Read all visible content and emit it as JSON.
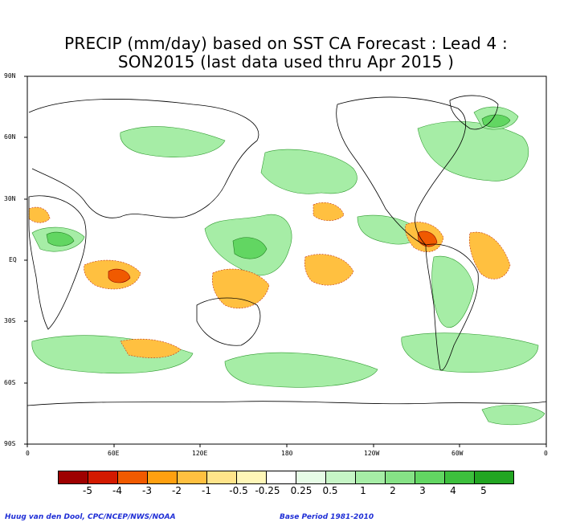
{
  "title": {
    "line1": "PRECIP (mm/day) based on SST CA Forecast : Lead 4 :",
    "line2": "SON2015 (last data used thru Apr 2015 )"
  },
  "axes": {
    "lat_labels": [
      "90N",
      "60N",
      "30N",
      "EQ",
      "30S",
      "60S",
      "90S"
    ],
    "lon_labels": [
      "0",
      "60E",
      "120E",
      "180",
      "120W",
      "60W",
      "0"
    ]
  },
  "legend": {
    "labels": [
      "-5",
      "-4",
      "-3",
      "-2",
      "-1",
      "-0.5",
      "-0.25",
      "0.25",
      "0.5",
      "1",
      "2",
      "3",
      "4",
      "5"
    ],
    "colors": [
      "#9e0000",
      "#d31a00",
      "#f05a00",
      "#ffa010",
      "#ffc040",
      "#ffe48a",
      "#fff7b8",
      "#ffffff",
      "#e6fce6",
      "#c6f5c6",
      "#a6eda6",
      "#86e286",
      "#62d662",
      "#22a522"
    ]
  },
  "credits": {
    "left": "Huug van den Dool, CPC/NCEP/NWS/NOAA",
    "right": "Base Period 1981-2010"
  },
  "colors": {
    "dry": "#ffc040",
    "wet": "#a6eda6",
    "coast": "#000000"
  }
}
